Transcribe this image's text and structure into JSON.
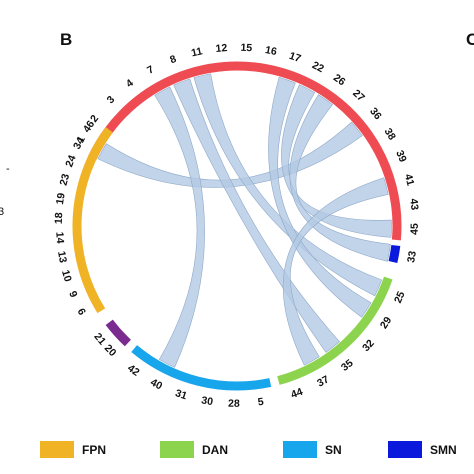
{
  "panel_label": "B",
  "edge_letter": "C",
  "edge_number": "3",
  "edge_dot": "-",
  "link_color": "#b3c9e3",
  "segments": [
    {
      "name": "red",
      "color": "#ee4b52",
      "nodes": [
        "1",
        "2",
        "3",
        "4",
        "7",
        "8",
        "11",
        "12",
        "15",
        "16",
        "17",
        "22",
        "26",
        "27",
        "36",
        "38",
        "39",
        "41",
        "43",
        "45"
      ]
    },
    {
      "name": "smn",
      "color": "#0b19dc",
      "nodes": [
        "33"
      ]
    },
    {
      "name": "dan",
      "color": "#8dd44e",
      "nodes": [
        "25",
        "29",
        "32",
        "35",
        "37",
        "44"
      ]
    },
    {
      "name": "sn",
      "color": "#17a5ec",
      "nodes": [
        "5",
        "28",
        "30",
        "31",
        "40",
        "42"
      ]
    },
    {
      "name": "purple",
      "color": "#7b2a8f",
      "nodes": [
        "20",
        "21"
      ]
    },
    {
      "name": "fpn",
      "color": "#f0b325",
      "nodes": [
        "6",
        "9",
        "10",
        "13",
        "14",
        "18",
        "19",
        "23",
        "24",
        "34",
        "46"
      ]
    }
  ],
  "links": [
    [
      "1",
      "36"
    ],
    [
      "7",
      "40"
    ],
    [
      "8",
      "35"
    ],
    [
      "11",
      "25"
    ],
    [
      "17",
      "29"
    ],
    [
      "22",
      "45"
    ],
    [
      "26",
      "33"
    ],
    [
      "41",
      "37"
    ]
  ],
  "legend": [
    {
      "label": "FPN",
      "color": "#f0b325"
    },
    {
      "label": "DAN",
      "color": "#8dd44e"
    },
    {
      "label": "SN",
      "color": "#17a5ec"
    },
    {
      "label": "SMN",
      "color": "#0b19dc"
    }
  ]
}
